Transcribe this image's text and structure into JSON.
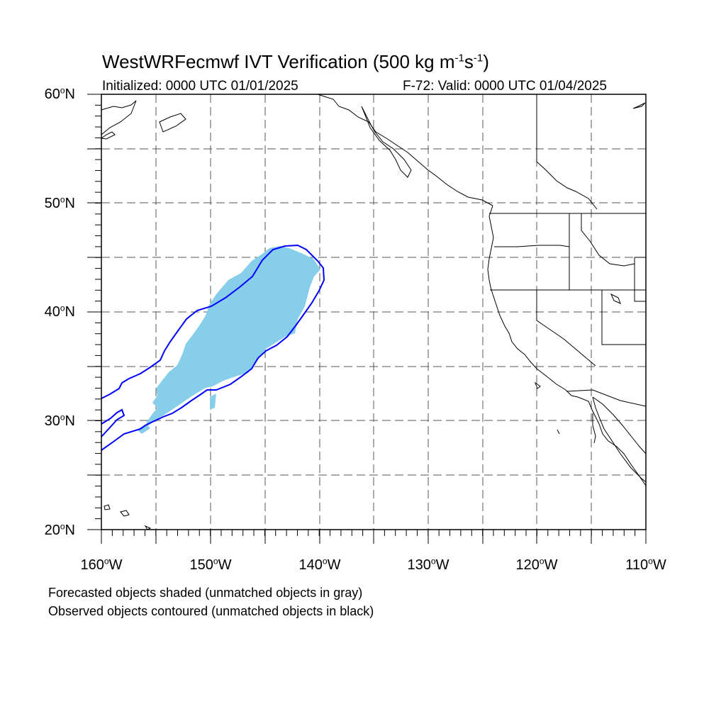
{
  "header": {
    "title_main": "WestWRFecmwf IVT Verification (500 kg m",
    "title_exp1": "-1",
    "title_mid": "s",
    "title_exp2": "-1",
    "title_end": ")",
    "initialized": "Initialized: 0000 UTC 01/01/2025",
    "valid": "F-72: Valid: 0000 UTC 01/04/2025"
  },
  "axes": {
    "lat_labels": [
      "60",
      "50",
      "40",
      "30",
      "20"
    ],
    "lat_suffix": "N",
    "lon_labels": [
      "160",
      "150",
      "140",
      "130",
      "120",
      "110"
    ],
    "lon_suffix": "W",
    "degree_mark": "o",
    "lat_range": [
      20,
      60
    ],
    "lon_range": [
      -160,
      -110
    ],
    "grid": "dashed every 5 degrees"
  },
  "colors": {
    "forecast_fill": "#87CEEB",
    "observed_contour": "#0000FF",
    "coastline": "#000000",
    "grid": "#555555"
  },
  "footer": {
    "line1": "Forecasted objects shaded (unmatched objects in gray)",
    "line2": "Observed objects contoured (unmatched objects in black)"
  }
}
